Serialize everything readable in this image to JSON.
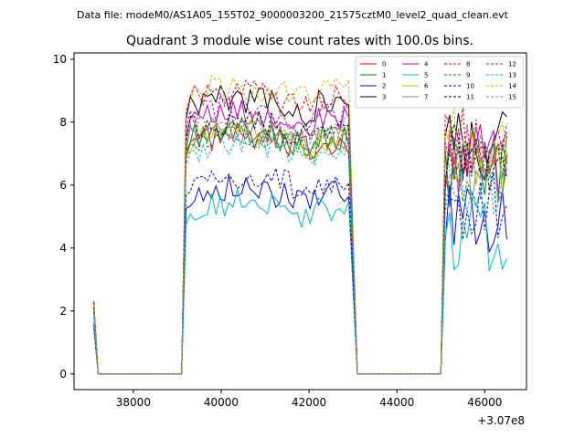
{
  "header": {
    "suptitle": "Data file: modeM0/AS1A05_155T02_9000003200_21575cztM0_level2_quad_clean.evt"
  },
  "chart_data": {
    "type": "line",
    "title": "Quadrant 3 module wise count rates with 100.0s bins.",
    "xlabel": "",
    "ylabel": "",
    "x_offset_label": "+3.07e8",
    "xlim": [
      36650,
      46950
    ],
    "ylim": [
      -0.5,
      10.2
    ],
    "x_ticks": [
      38000,
      40000,
      42000,
      44000,
      46000
    ],
    "y_ticks": [
      0,
      2,
      4,
      6,
      8,
      10
    ],
    "legend_position": "upper-right",
    "grid": false,
    "segments": {
      "x_start": [
        37100,
        37200
      ],
      "x_flat1": [
        37200,
        39100
      ],
      "x_block1": [
        39200,
        42900
      ],
      "x_flat2": [
        43100,
        45000
      ],
      "x_block2": [
        45100,
        46500
      ]
    },
    "series": [
      {
        "name": "0",
        "color": "#ff0000",
        "dash": false,
        "start": 2.3,
        "level1": 7.3,
        "level2": 6.7
      },
      {
        "name": "1",
        "color": "#008000",
        "dash": false,
        "start": 2.0,
        "level1": 7.5,
        "level2": 6.5
      },
      {
        "name": "2",
        "color": "#0000ff",
        "dash": false,
        "start": 1.5,
        "level1": 5.7,
        "level2": 4.9
      },
      {
        "name": "3",
        "color": "#000000",
        "dash": false,
        "start": 2.2,
        "level1": 8.5,
        "level2": 7.2
      },
      {
        "name": "4",
        "color": "#bf00bf",
        "dash": false,
        "start": 2.0,
        "level1": 8.0,
        "level2": 6.8
      },
      {
        "name": "5",
        "color": "#00bfbf",
        "dash": false,
        "start": 1.5,
        "level1": 5.2,
        "level2": 4.3
      },
      {
        "name": "6",
        "color": "#bfbf00",
        "dash": false,
        "start": 2.1,
        "level1": 7.4,
        "level2": 6.6
      },
      {
        "name": "7",
        "color": "#808080",
        "dash": false,
        "start": 2.0,
        "level1": 7.5,
        "level2": 6.4
      },
      {
        "name": "8",
        "color": "#ff0000",
        "dash": true,
        "start": 2.3,
        "level1": 8.7,
        "level2": 7.4
      },
      {
        "name": "9",
        "color": "#008000",
        "dash": true,
        "start": 2.0,
        "level1": 7.4,
        "level2": 6.6
      },
      {
        "name": "10",
        "color": "#0000ff",
        "dash": true,
        "start": 1.6,
        "level1": 6.1,
        "level2": 5.2
      },
      {
        "name": "11",
        "color": "#000000",
        "dash": true,
        "start": 2.1,
        "level1": 7.8,
        "level2": 6.9
      },
      {
        "name": "12",
        "color": "#bf00bf",
        "dash": true,
        "start": 2.0,
        "level1": 8.2,
        "level2": 7.0
      },
      {
        "name": "13",
        "color": "#00bfbf",
        "dash": true,
        "start": 1.8,
        "level1": 7.1,
        "level2": 6.2
      },
      {
        "name": "14",
        "color": "#bfbf00",
        "dash": true,
        "start": 2.2,
        "level1": 8.9,
        "level2": 7.6
      },
      {
        "name": "15",
        "color": "#808080",
        "dash": true,
        "start": 2.0,
        "level1": 7.6,
        "level2": 6.5
      }
    ]
  }
}
